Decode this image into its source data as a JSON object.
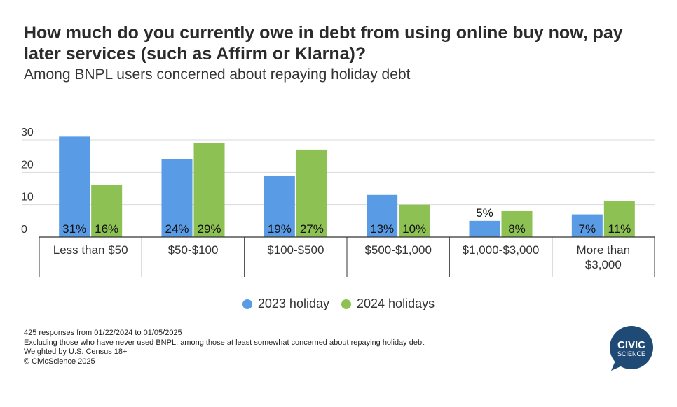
{
  "title": "How much do you currently owe in debt from using online buy now, pay later services (such as Affirm or Klarna)?",
  "subtitle": "Among BNPL users concerned about repaying holiday debt",
  "colors": {
    "series_2023": "#5a9be6",
    "series_2024": "#8dc153",
    "logo": "#1f4a75"
  },
  "chart_data": {
    "type": "bar",
    "categories": [
      "Less than $50",
      "$50-$100",
      "$100-$500",
      "$500-$1,000",
      "$1,000-$3,000",
      "More than $3,000"
    ],
    "series": [
      {
        "name": "2023 holiday",
        "values": [
          31,
          24,
          19,
          13,
          5,
          7
        ],
        "labels": [
          "31%",
          "24%",
          "19%",
          "13%",
          "5%",
          "7%"
        ]
      },
      {
        "name": "2024 holidays",
        "values": [
          16,
          29,
          27,
          10,
          8,
          11
        ],
        "labels": [
          "16%",
          "29%",
          "27%",
          "10%",
          "8%",
          "11%"
        ]
      }
    ],
    "yticks": [
      "0",
      "10",
      "20",
      "30"
    ],
    "ylim": [
      0,
      30
    ],
    "grid": true,
    "legend": "bottom"
  },
  "legend": {
    "item_2023": "2023 holiday",
    "item_2024": "2024 holidays"
  },
  "footnotes": [
    "425 responses from 01/22/2024 to 01/05/2025",
    "Excluding those who have never used BNPL, among those at least somewhat concerned about repaying holiday debt",
    "Weighted by U.S. Census 18+",
    "© CivicScience 2025"
  ],
  "logo": {
    "line1": "CIVIC",
    "line2": "SCIENCE"
  }
}
